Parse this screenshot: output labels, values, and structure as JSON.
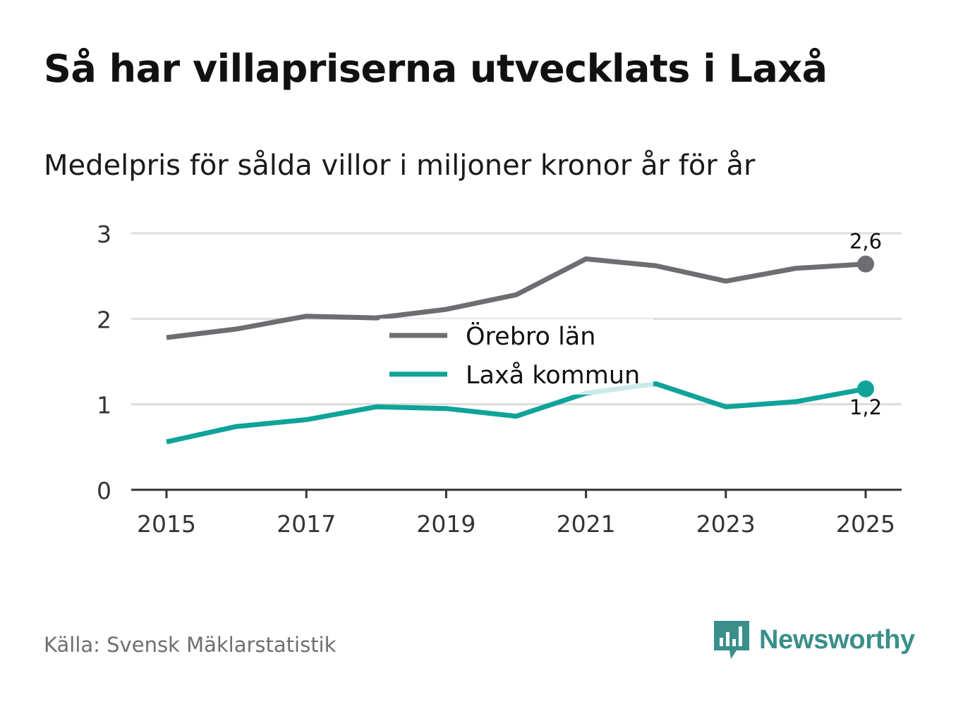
{
  "title": "Så har villapriserna utvecklats i Laxå",
  "subtitle": "Medelpris för sålda villor i miljoner kronor år för år",
  "source": "Källa: Svensk Mäklarstatistik",
  "brand": "Newsworthy",
  "icons": {
    "brand_logo": "newsworthy-logo-icon"
  },
  "colors": {
    "orebro": "#6e6d72",
    "laxa": "#0fa399",
    "grid": "#dddddd",
    "axis": "#333333",
    "brand": "#3a8f8a"
  },
  "chart_data": {
    "type": "line",
    "title": "Så har villapriserna utvecklats i Laxå",
    "subtitle": "Medelpris för sålda villor i miljoner kronor år för år",
    "xlabel": "",
    "ylabel": "",
    "x": [
      2015,
      2016,
      2017,
      2018,
      2019,
      2020,
      2021,
      2022,
      2023,
      2024,
      2025
    ],
    "xticks": [
      "2015",
      "2017",
      "2019",
      "2021",
      "2023",
      "2025"
    ],
    "yticks": [
      "0",
      "1",
      "2",
      "3"
    ],
    "ylim": [
      0,
      3
    ],
    "grid": true,
    "legend_position": "center",
    "series": [
      {
        "name": "Örebro län",
        "color": "#6e6d72",
        "values": [
          1.78,
          1.88,
          2.03,
          2.01,
          2.11,
          2.28,
          2.7,
          2.62,
          2.44,
          2.59,
          2.64
        ],
        "end_label": "2,6"
      },
      {
        "name": "Laxå kommun",
        "color": "#0fa399",
        "values": [
          0.56,
          0.74,
          0.82,
          0.97,
          0.95,
          0.86,
          1.13,
          1.24,
          0.97,
          1.03,
          1.18
        ],
        "end_label": "1,2"
      }
    ]
  }
}
